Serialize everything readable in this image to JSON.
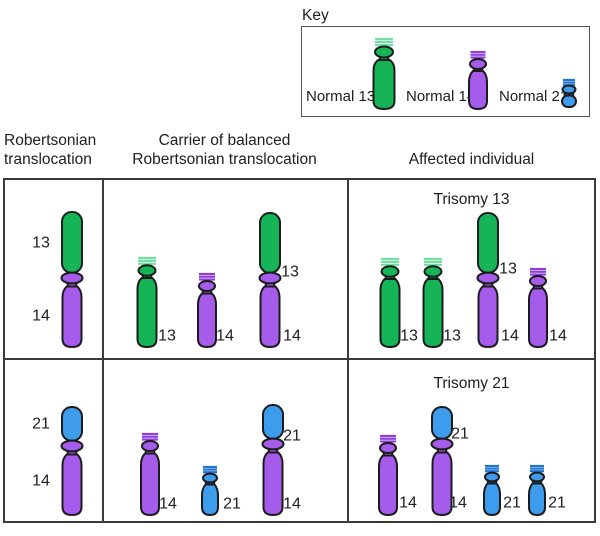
{
  "colors": {
    "green": {
      "body": "#14b457",
      "stripe": "#74dfa2"
    },
    "purple": {
      "body": "#a55cea",
      "stripe": "#8f3fe0"
    },
    "blue": {
      "body": "#3d9ceb",
      "stripe": "#1f74d2"
    },
    "outline": "#1c1c1e",
    "text": "#202020",
    "grid": "#3a3a3a"
  },
  "key": {
    "label": "Key",
    "items": [
      {
        "label": "Normal 13",
        "color": "green",
        "size": "large"
      },
      {
        "label": "Normal 14",
        "color": "purple",
        "size": "medium"
      },
      {
        "label": "Normal 21",
        "color": "blue",
        "size": "small"
      }
    ]
  },
  "headers": [
    {
      "text": "Robertsonian\ntranslocation"
    },
    {
      "text": "Carrier of balanced\nRobertsonian translocation"
    },
    {
      "text": "Affected individual"
    }
  ],
  "cells": [
    {
      "id": "r1c1",
      "title": "",
      "chromosomes": [
        {
          "kind": "fused",
          "top_color": "green",
          "bottom_color": "purple",
          "top_label": "13",
          "bottom_label": "14"
        }
      ]
    },
    {
      "id": "r1c2",
      "title": "",
      "chromosomes": [
        {
          "kind": "normal",
          "color": "green",
          "size": "large",
          "label": "13"
        },
        {
          "kind": "normal",
          "color": "purple",
          "size": "medium",
          "label": "14"
        },
        {
          "kind": "fused",
          "top_color": "green",
          "bottom_color": "purple",
          "top_label": "13",
          "bottom_label": "14"
        }
      ]
    },
    {
      "id": "r1c3",
      "title": "Trisomy 13",
      "chromosomes": [
        {
          "kind": "normal",
          "color": "green",
          "size": "large",
          "label": "13"
        },
        {
          "kind": "normal",
          "color": "green",
          "size": "large",
          "label": "13"
        },
        {
          "kind": "fused",
          "top_color": "green",
          "bottom_color": "purple",
          "top_label": "13",
          "bottom_label": "14"
        },
        {
          "kind": "normal",
          "color": "purple",
          "size": "medium",
          "label": "14"
        }
      ]
    },
    {
      "id": "r2c1",
      "title": "",
      "chromosomes": [
        {
          "kind": "fused",
          "top_color": "blue",
          "bottom_color": "purple",
          "top_label": "21",
          "bottom_label": "14"
        }
      ]
    },
    {
      "id": "r2c2",
      "title": "",
      "chromosomes": [
        {
          "kind": "normal",
          "color": "purple",
          "size": "medium",
          "label": "14"
        },
        {
          "kind": "normal",
          "color": "blue",
          "size": "small",
          "label": "21"
        },
        {
          "kind": "fused",
          "top_color": "blue",
          "bottom_color": "purple",
          "top_label": "21",
          "bottom_label": "14"
        }
      ]
    },
    {
      "id": "r2c3",
      "title": "Trisomy 21",
      "chromosomes": [
        {
          "kind": "normal",
          "color": "purple",
          "size": "medium",
          "label": "14"
        },
        {
          "kind": "fused",
          "top_color": "blue",
          "bottom_color": "purple",
          "top_label": "21",
          "bottom_label": "14"
        },
        {
          "kind": "normal",
          "color": "blue",
          "size": "small",
          "label": "21"
        },
        {
          "kind": "normal",
          "color": "blue",
          "size": "small",
          "label": "21"
        }
      ]
    }
  ]
}
